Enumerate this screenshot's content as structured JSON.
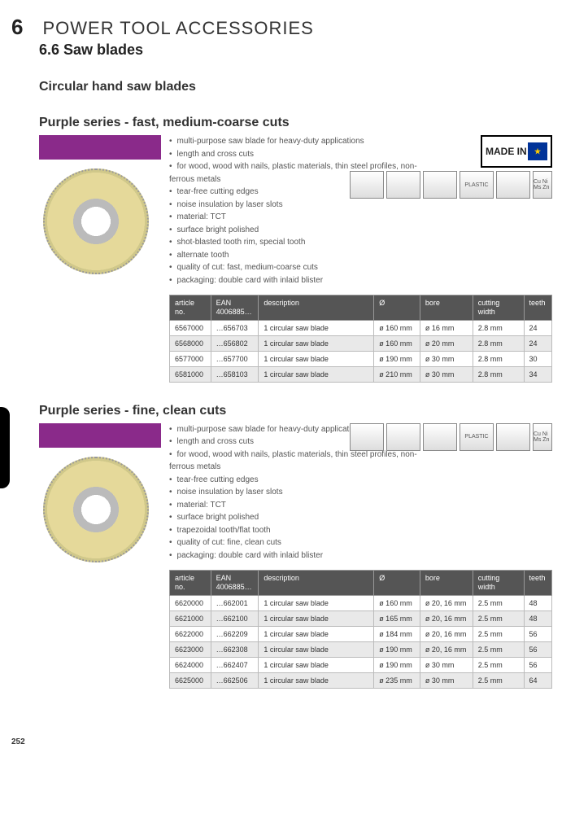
{
  "chapter": {
    "num": "6",
    "title": "POWER TOOL ACCESSORIES"
  },
  "subchapter": "6.6 Saw blades",
  "h3": "Circular hand saw blades",
  "page_num": "252",
  "sections": [
    {
      "title": "Purple series - fast, medium-coarse cuts",
      "made_in": "MADE IN",
      "bullets": [
        "multi-purpose saw blade for heavy-duty applications",
        "length and cross cuts",
        "for wood, wood with nails, plastic materials, thin steel profiles, non-ferrous metals",
        "tear-free cutting edges",
        "noise insulation by laser slots",
        "material: TCT",
        "surface bright polished",
        "shot-blasted tooth rim, special tooth",
        "alternate tooth",
        "quality of cut: fast, medium-coarse cuts",
        "packaging: double card with inlaid blister"
      ],
      "table": {
        "columns": [
          "article no.",
          "EAN 4006885…",
          "description",
          "Ø",
          "bore",
          "cutting width",
          "teeth"
        ],
        "rows": [
          [
            "6567000",
            "…656703",
            "1 circular saw blade",
            "ø 160 mm",
            "ø 16 mm",
            "2.8 mm",
            "24"
          ],
          [
            "6568000",
            "…656802",
            "1 circular saw blade",
            "ø 160 mm",
            "ø 20 mm",
            "2.8 mm",
            "24"
          ],
          [
            "6577000",
            "…657700",
            "1 circular saw blade",
            "ø 190 mm",
            "ø 30 mm",
            "2.8 mm",
            "30"
          ],
          [
            "6581000",
            "…658103",
            "1 circular saw blade",
            "ø 210 mm",
            "ø 30 mm",
            "2.8 mm",
            "34"
          ]
        ]
      }
    },
    {
      "title": "Purple series - fine, clean cuts",
      "made_in": null,
      "bullets": [
        "multi-purpose saw blade for heavy-duty applications",
        "length and cross cuts",
        "for wood, wood with nails, plastic materials, thin steel profiles, non-ferrous metals",
        "tear-free cutting edges",
        "noise insulation by laser slots",
        "material: TCT",
        "surface bright polished",
        "trapezoidal tooth/flat tooth",
        "quality of cut: fine, clean cuts",
        "packaging: double card with inlaid blister"
      ],
      "table": {
        "columns": [
          "article no.",
          "EAN 4006885…",
          "description",
          "Ø",
          "bore",
          "cutting width",
          "teeth"
        ],
        "rows": [
          [
            "6620000",
            "…662001",
            "1 circular saw blade",
            "ø 160 mm",
            "ø 20, 16 mm",
            "2.5 mm",
            "48"
          ],
          [
            "6621000",
            "…662100",
            "1 circular saw blade",
            "ø 165 mm",
            "ø 20, 16 mm",
            "2.5 mm",
            "48"
          ],
          [
            "6622000",
            "…662209",
            "1 circular saw blade",
            "ø 184 mm",
            "ø 20, 16 mm",
            "2.5 mm",
            "56"
          ],
          [
            "6623000",
            "…662308",
            "1 circular saw blade",
            "ø 190 mm",
            "ø 20, 16 mm",
            "2.5 mm",
            "56"
          ],
          [
            "6624000",
            "…662407",
            "1 circular saw blade",
            "ø 190 mm",
            "ø 30 mm",
            "2.5 mm",
            "56"
          ],
          [
            "6625000",
            "…662506",
            "1 circular saw blade",
            "ø 235 mm",
            "ø 30 mm",
            "2.5 mm",
            "64"
          ]
        ]
      }
    }
  ],
  "mat_icons": [
    "",
    "",
    "",
    "PLASTIC",
    "",
    "Cu Ni Ms Zn"
  ],
  "colors": {
    "purple": "#8a2a8a",
    "header_bg": "#555555"
  }
}
